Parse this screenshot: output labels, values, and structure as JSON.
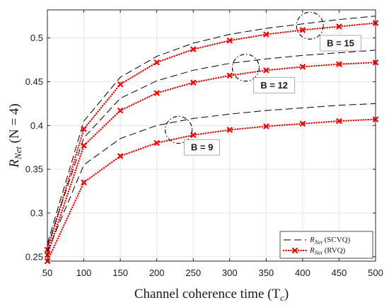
{
  "chart_data": {
    "type": "line",
    "xlabel": "Channel coherence time (T",
    "xlabel_sub": "c",
    "xlabel_suffix": ")",
    "ylabel": "R",
    "ylabel_sub": "Net",
    "ylabel_suffix": " (N = 4)",
    "xlim": [
      50,
      500
    ],
    "ylim": [
      0.245,
      0.532
    ],
    "xticks": [
      50,
      100,
      150,
      200,
      250,
      300,
      350,
      400,
      450,
      500
    ],
    "yticks": [
      0.25,
      0.3,
      0.35,
      0.4,
      0.45,
      0.5
    ],
    "ytick_labels": [
      "0.25",
      "0.3",
      "0.35",
      "0.4",
      "0.45",
      "0.5"
    ],
    "grid": true,
    "legend_position": "bottom-right",
    "legend": [
      {
        "label": "R",
        "sub": "Net",
        "suffix": " (SCVQ)",
        "style": "dashed",
        "color": "#000000"
      },
      {
        "label": "R",
        "sub": "Net",
        "suffix": " (RVQ)",
        "style": "dotted-marker",
        "color": "#ff0000"
      }
    ],
    "x": [
      50,
      100,
      150,
      200,
      250,
      300,
      350,
      400,
      450,
      500
    ],
    "series": [
      {
        "group": "SCVQ",
        "B": 15,
        "values": [
          0.265,
          0.405,
          0.455,
          0.479,
          0.494,
          0.504,
          0.511,
          0.516,
          0.521,
          0.525
        ]
      },
      {
        "group": "RVQ",
        "B": 15,
        "values": [
          0.258,
          0.396,
          0.447,
          0.472,
          0.487,
          0.497,
          0.504,
          0.509,
          0.513,
          0.517
        ]
      },
      {
        "group": "SCVQ",
        "B": 12,
        "values": [
          0.262,
          0.386,
          0.431,
          0.451,
          0.463,
          0.471,
          0.476,
          0.48,
          0.483,
          0.486
        ]
      },
      {
        "group": "RVQ",
        "B": 12,
        "values": [
          0.252,
          0.377,
          0.417,
          0.437,
          0.449,
          0.457,
          0.463,
          0.467,
          0.47,
          0.472
        ]
      },
      {
        "group": "SCVQ",
        "B": 9,
        "values": [
          0.256,
          0.355,
          0.385,
          0.4,
          0.408,
          0.413,
          0.417,
          0.42,
          0.423,
          0.425
        ]
      },
      {
        "group": "RVQ",
        "B": 9,
        "values": [
          0.245,
          0.335,
          0.365,
          0.38,
          0.389,
          0.395,
          0.399,
          0.402,
          0.405,
          0.407
        ]
      }
    ],
    "annotations": [
      {
        "text": "B = 15",
        "circle_x": 410,
        "circle_y": 0.514,
        "label_x": 452,
        "label_y": 0.494
      },
      {
        "text": "B = 12",
        "circle_x": 322,
        "circle_y": 0.466,
        "label_x": 361,
        "label_y": 0.446
      },
      {
        "text": "B = 9",
        "circle_x": 230,
        "circle_y": 0.395,
        "label_x": 262,
        "label_y": 0.375
      }
    ]
  }
}
